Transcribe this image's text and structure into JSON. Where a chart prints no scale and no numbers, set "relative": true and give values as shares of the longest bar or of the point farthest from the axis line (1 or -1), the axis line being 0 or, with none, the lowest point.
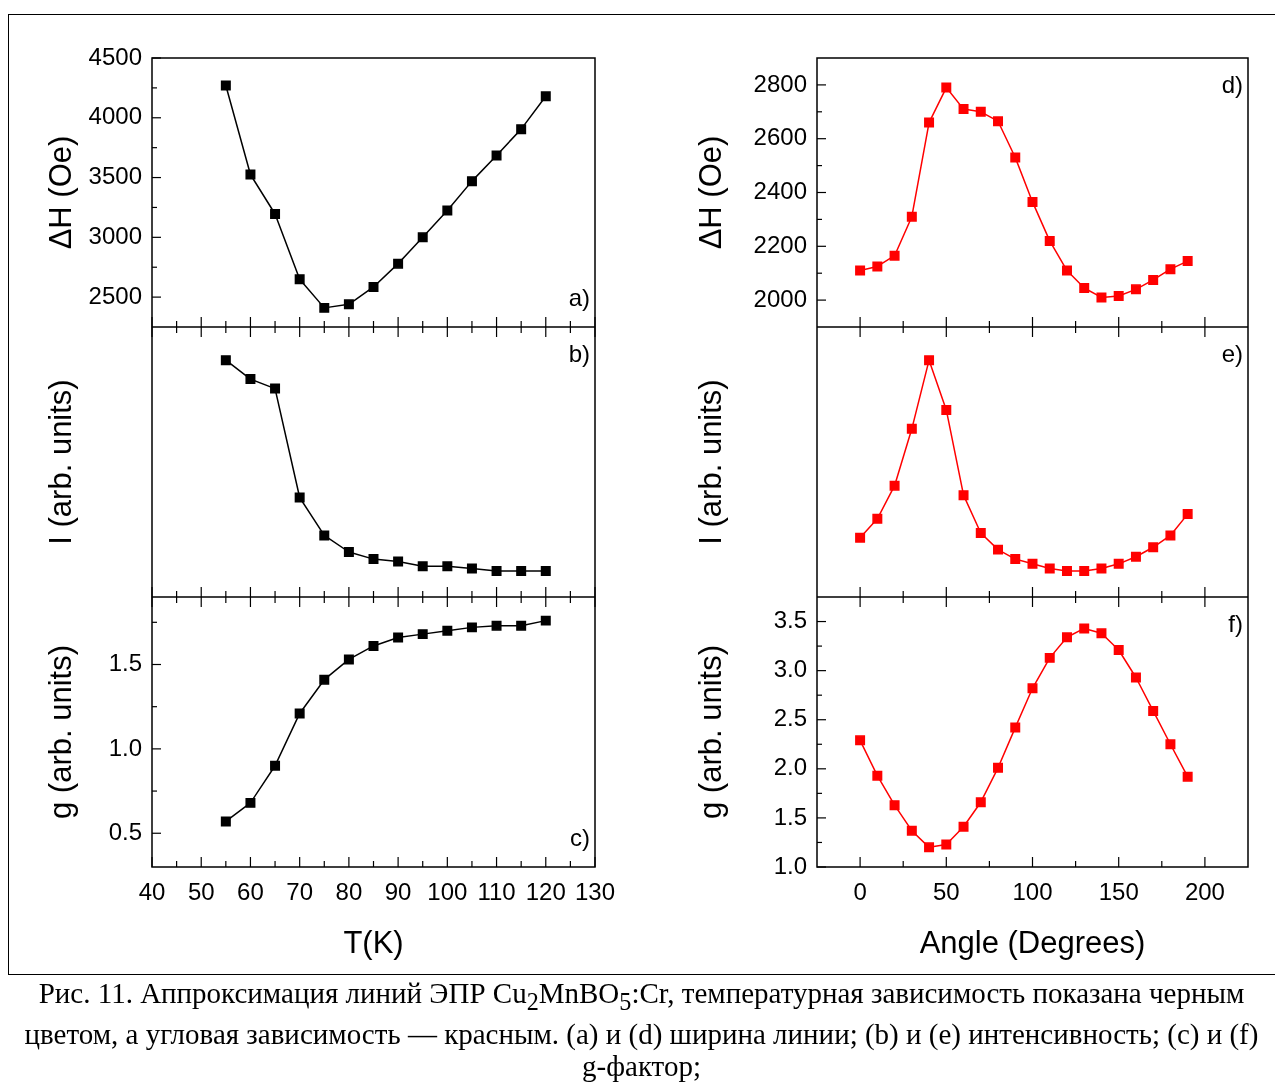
{
  "chart_data": [
    {
      "type": "line",
      "x": [
        55,
        60,
        65,
        70,
        75,
        80,
        85,
        90,
        95,
        100,
        105,
        110,
        115,
        120
      ],
      "series": [
        {
          "color": "#000000",
          "values": [
            4270,
            3525,
            3195,
            2650,
            2410,
            2440,
            2585,
            2780,
            3000,
            3225,
            3470,
            3685,
            3905,
            4180
          ]
        }
      ],
      "xlim": [
        40,
        130
      ],
      "xticks": [
        40,
        {
          "value": 45,
          "label": null
        },
        50,
        {
          "value": 55,
          "label": null
        },
        60,
        {
          "value": 65,
          "label": null
        },
        70,
        {
          "value": 75,
          "label": null
        },
        80,
        {
          "value": 85,
          "label": null
        },
        90,
        {
          "value": 95,
          "label": null
        },
        100,
        {
          "value": 105,
          "label": null
        },
        110,
        {
          "value": 115,
          "label": null
        },
        120,
        {
          "value": 125,
          "label": null
        },
        130
      ],
      "ylim": [
        2250,
        4500
      ],
      "yticks": [
        2500,
        {
          "value": 2750,
          "label": null
        },
        3000,
        {
          "value": 3250,
          "label": null
        },
        3500,
        {
          "value": 3750,
          "label": null
        },
        4000,
        {
          "value": 4250,
          "label": null
        },
        4500
      ],
      "ylabel": "ΔH (Oe)",
      "tick_labels": "y",
      "marker": "square",
      "line_style": "solid",
      "annotations": [
        "a)"
      ]
    },
    {
      "type": "line",
      "x": [
        55,
        60,
        65,
        70,
        75,
        80,
        85,
        90,
        95,
        100,
        105,
        110,
        115,
        120
      ],
      "series": [
        {
          "color": "#000000",
          "values": [
            1,
            0.92,
            0.88,
            0.42,
            0.26,
            0.19,
            0.16,
            0.15,
            0.13,
            0.13,
            0.12,
            0.11,
            0.11,
            0.11
          ]
        }
      ],
      "relative": true,
      "xlim": [
        40,
        130
      ],
      "xticks": [
        40,
        {
          "value": 45,
          "label": null
        },
        50,
        {
          "value": 55,
          "label": null
        },
        60,
        {
          "value": 65,
          "label": null
        },
        70,
        {
          "value": 75,
          "label": null
        },
        80,
        {
          "value": 85,
          "label": null
        },
        90,
        {
          "value": 95,
          "label": null
        },
        100,
        {
          "value": 105,
          "label": null
        },
        110,
        {
          "value": 115,
          "label": null
        },
        120,
        {
          "value": 125,
          "label": null
        },
        130
      ],
      "ylabel": "I (arb. units)",
      "tick_labels": false,
      "marker": "square",
      "line_style": "solid",
      "annotations": [
        "b)"
      ]
    },
    {
      "type": "line",
      "x": [
        55,
        60,
        65,
        70,
        75,
        80,
        85,
        90,
        95,
        100,
        105,
        110,
        115,
        120
      ],
      "series": [
        {
          "color": "#000000",
          "values": [
            0.57,
            0.68,
            0.9,
            1.21,
            1.41,
            1.53,
            1.61,
            1.66,
            1.68,
            1.7,
            1.72,
            1.73,
            1.73,
            1.76
          ]
        }
      ],
      "xlim": [
        40,
        130
      ],
      "xticks": [
        40,
        {
          "value": 45,
          "label": null
        },
        50,
        {
          "value": 55,
          "label": null
        },
        60,
        {
          "value": 65,
          "label": null
        },
        70,
        {
          "value": 75,
          "label": null
        },
        80,
        {
          "value": 85,
          "label": null
        },
        90,
        {
          "value": 95,
          "label": null
        },
        100,
        {
          "value": 105,
          "label": null
        },
        110,
        {
          "value": 115,
          "label": null
        },
        120,
        {
          "value": 125,
          "label": null
        },
        130
      ],
      "ylim": [
        0.3,
        1.9
      ],
      "yticks": [
        0.5,
        {
          "value": 0.75,
          "label": null
        },
        {
          "value": 1,
          "label": "1.0"
        },
        {
          "value": 1.25,
          "label": null
        },
        1.5,
        {
          "value": 1.75,
          "label": null
        }
      ],
      "xlabel": "T(K)",
      "ylabel": "g (arb. units)",
      "marker": "square",
      "line_style": "solid",
      "annotations": [
        "c)"
      ]
    },
    {
      "type": "line",
      "x": [
        0,
        10,
        20,
        30,
        40,
        50,
        60,
        70,
        80,
        90,
        100,
        110,
        120,
        130,
        140,
        150,
        160,
        170,
        180,
        190
      ],
      "series": [
        {
          "color": "#ff0000",
          "values": [
            2110,
            2125,
            2165,
            2310,
            2660,
            2790,
            2710,
            2700,
            2665,
            2530,
            2365,
            2220,
            2110,
            2045,
            2010,
            2015,
            2040,
            2075,
            2115,
            2145
          ]
        }
      ],
      "xlim": [
        -25,
        225
      ],
      "xticks": [
        0,
        {
          "value": 25,
          "label": null
        },
        50,
        {
          "value": 75,
          "label": null
        },
        100,
        {
          "value": 125,
          "label": null
        },
        150,
        {
          "value": 175,
          "label": null
        },
        200
      ],
      "ylim": [
        1900,
        2900
      ],
      "yticks": [
        2000,
        {
          "value": 2100,
          "label": null
        },
        2200,
        {
          "value": 2300,
          "label": null
        },
        2400,
        {
          "value": 2500,
          "label": null
        },
        2600,
        {
          "value": 2700,
          "label": null
        },
        2800
      ],
      "ylabel": "ΔH (Oe)",
      "tick_labels": "y",
      "marker": "square",
      "line_style": "solid",
      "annotations": [
        "d)"
      ]
    },
    {
      "type": "line",
      "x": [
        0,
        10,
        20,
        30,
        40,
        50,
        60,
        70,
        80,
        90,
        100,
        110,
        120,
        130,
        140,
        150,
        160,
        170,
        180,
        190
      ],
      "series": [
        {
          "color": "#ff0000",
          "values": [
            0.25,
            0.33,
            0.47,
            0.71,
            1,
            0.79,
            0.43,
            0.27,
            0.2,
            0.16,
            0.14,
            0.12,
            0.11,
            0.11,
            0.12,
            0.14,
            0.17,
            0.21,
            0.26,
            0.35
          ]
        }
      ],
      "relative": true,
      "xlim": [
        -25,
        225
      ],
      "xticks": [
        0,
        {
          "value": 25,
          "label": null
        },
        50,
        {
          "value": 75,
          "label": null
        },
        100,
        {
          "value": 125,
          "label": null
        },
        150,
        {
          "value": 175,
          "label": null
        },
        200
      ],
      "ylabel": "I (arb. units)",
      "tick_labels": false,
      "marker": "square",
      "line_style": "solid",
      "annotations": [
        "e)"
      ]
    },
    {
      "type": "line",
      "x": [
        0,
        10,
        20,
        30,
        40,
        50,
        60,
        70,
        80,
        90,
        100,
        110,
        120,
        130,
        140,
        150,
        160,
        170,
        180,
        190
      ],
      "series": [
        {
          "color": "#ff0000",
          "values": [
            2.29,
            1.93,
            1.63,
            1.37,
            1.2,
            1.23,
            1.41,
            1.66,
            2.01,
            2.42,
            2.82,
            3.13,
            3.34,
            3.43,
            3.38,
            3.21,
            2.93,
            2.59,
            2.25,
            1.92
          ]
        }
      ],
      "xlim": [
        -25,
        225
      ],
      "xticks": [
        0,
        {
          "value": 25,
          "label": null
        },
        50,
        {
          "value": 75,
          "label": null
        },
        100,
        {
          "value": 125,
          "label": null
        },
        150,
        {
          "value": 175,
          "label": null
        },
        200
      ],
      "ylim": [
        1,
        3.75
      ],
      "yticks": [
        {
          "value": 1,
          "label": "1.0"
        },
        {
          "value": 1.25,
          "label": null
        },
        1.5,
        {
          "value": 1.75,
          "label": null
        },
        {
          "value": 2,
          "label": "2.0"
        },
        {
          "value": 2.25,
          "label": null
        },
        2.5,
        {
          "value": 2.75,
          "label": null
        },
        {
          "value": 3,
          "label": "3.0"
        },
        {
          "value": 3.25,
          "label": null
        },
        3.5
      ],
      "xlabel": "Angle (Degrees)",
      "ylabel": "g (arb. units)",
      "marker": "square",
      "line_style": "solid",
      "annotations": [
        "f)",
        "Рис. 11. Аппроксимация линий ЭПР Cu$_{2}$MnBO$_{5}$:Cr, температурная зависимость показана черным цветом, а угловая зависимость — красным. (a) и (d) ширина линии; (b) и (e) интенсивность; (c) и (f) g-фактор;"
      ]
    }
  ]
}
